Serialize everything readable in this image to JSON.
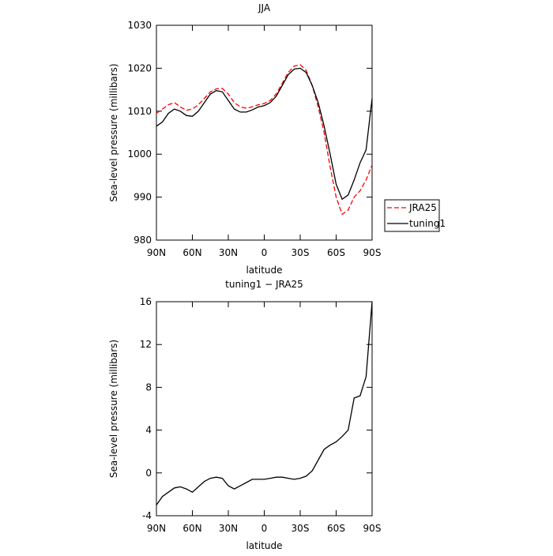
{
  "chart_data": [
    {
      "type": "line",
      "title": "JJA",
      "xlabel": "latitude",
      "ylabel": "Sea-level pressure (millibars)",
      "x": [
        90,
        85,
        80,
        75,
        70,
        65,
        60,
        55,
        50,
        45,
        40,
        35,
        30,
        25,
        20,
        15,
        10,
        5,
        0,
        -5,
        -10,
        -15,
        -20,
        -25,
        -30,
        -35,
        -40,
        -45,
        -50,
        -55,
        -60,
        -65,
        -70,
        -75,
        -80,
        -85,
        -90
      ],
      "xlim": [
        90,
        -90
      ],
      "xticks": [
        {
          "value": 90,
          "label": "90N"
        },
        {
          "value": 60,
          "label": "60N"
        },
        {
          "value": 30,
          "label": "30N"
        },
        0,
        {
          "value": -30,
          "label": "30S"
        },
        {
          "value": -60,
          "label": "60S"
        },
        {
          "value": -90,
          "label": "90S"
        }
      ],
      "ylim": [
        980,
        1030
      ],
      "yticks": [
        980,
        990,
        1000,
        1010,
        1020,
        1030
      ],
      "legend": "right",
      "series": [
        {
          "name": "JRA25",
          "color": "#ff0000",
          "linestyle": "dashed",
          "values": [
            1009.5,
            1010.5,
            1011.5,
            1012,
            1011,
            1010.2,
            1010.5,
            1011.5,
            1013,
            1014.5,
            1015.2,
            1015.3,
            1014,
            1012,
            1011,
            1010.7,
            1011,
            1011.5,
            1011.8,
            1012.5,
            1014,
            1016.5,
            1019,
            1020.5,
            1020.8,
            1019.5,
            1016,
            1011,
            1005,
            997,
            990,
            986,
            987,
            990,
            991.5,
            994,
            997.5
          ]
        },
        {
          "name": "tuning1",
          "color": "#000000",
          "linestyle": "solid",
          "values": [
            1006.5,
            1007.5,
            1009.5,
            1010.5,
            1010,
            1009,
            1008.8,
            1010,
            1012,
            1014,
            1014.8,
            1014.5,
            1012.5,
            1010.5,
            1009.8,
            1009.8,
            1010.3,
            1011,
            1011.3,
            1012,
            1013.5,
            1016,
            1018.5,
            1019.8,
            1020,
            1019,
            1016,
            1012,
            1006.5,
            1000,
            993,
            989.5,
            990.5,
            994,
            998,
            1001,
            1013
          ]
        }
      ]
    },
    {
      "type": "line",
      "title": "tuning1 − JRA25",
      "xlabel": "latitude",
      "ylabel": "Sea-level pressure (millibars)",
      "x": [
        90,
        85,
        80,
        75,
        70,
        65,
        60,
        55,
        50,
        45,
        40,
        35,
        30,
        25,
        20,
        15,
        10,
        5,
        0,
        -5,
        -10,
        -15,
        -20,
        -25,
        -30,
        -35,
        -40,
        -45,
        -50,
        -55,
        -60,
        -65,
        -70,
        -75,
        -80,
        -85,
        -90
      ],
      "xlim": [
        90,
        -90
      ],
      "xticks": [
        {
          "value": 90,
          "label": "90N"
        },
        {
          "value": 60,
          "label": "60N"
        },
        {
          "value": 30,
          "label": "30N"
        },
        0,
        {
          "value": -30,
          "label": "30S"
        },
        {
          "value": -60,
          "label": "60S"
        },
        {
          "value": -90,
          "label": "90S"
        }
      ],
      "ylim": [
        -4,
        16
      ],
      "yticks": [
        -4,
        0,
        4,
        8,
        12,
        16
      ],
      "color": "#000000",
      "values": [
        -3,
        -2.2,
        -1.8,
        -1.4,
        -1.3,
        -1.5,
        -1.8,
        -1.3,
        -0.8,
        -0.5,
        -0.4,
        -0.5,
        -1.2,
        -1.5,
        -1.2,
        -0.9,
        -0.6,
        -0.6,
        -0.6,
        -0.5,
        -0.4,
        -0.4,
        -0.5,
        -0.6,
        -0.5,
        -0.3,
        0.2,
        1.2,
        2.2,
        2.6,
        2.9,
        3.4,
        4,
        7,
        7.2,
        9,
        16
      ]
    }
  ]
}
